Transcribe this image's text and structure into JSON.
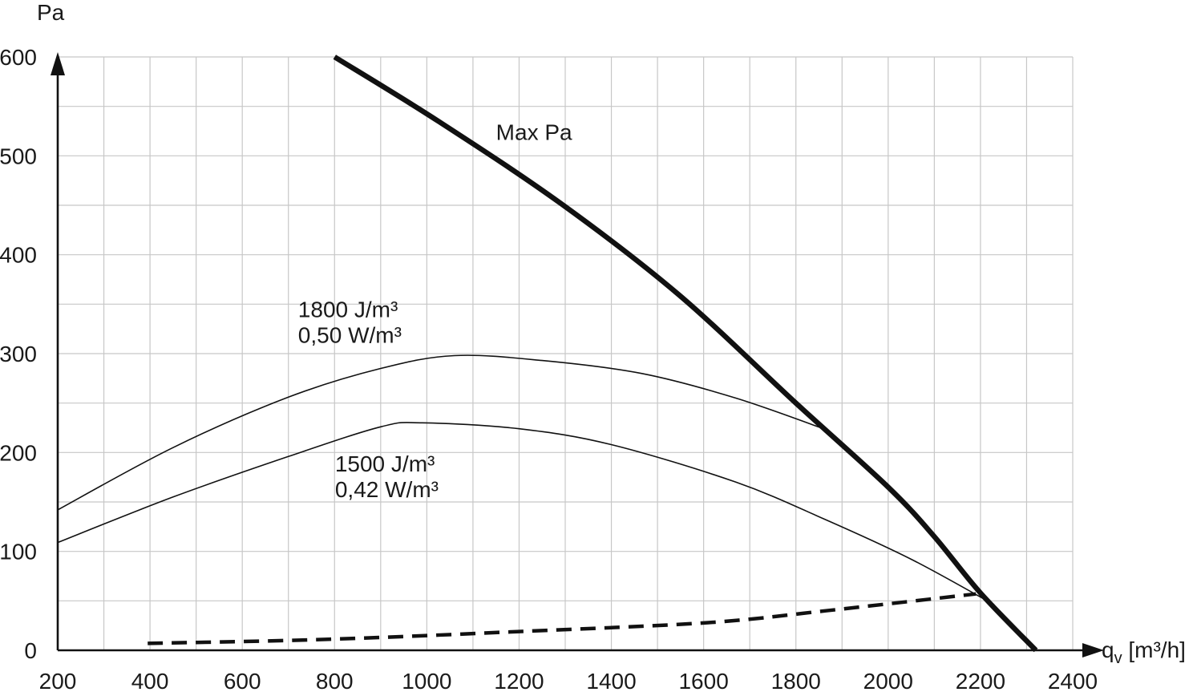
{
  "chart_data": {
    "type": "line",
    "title": "",
    "ylabel": "Pa",
    "xlabel_base": "q",
    "xlabel_sub": "v",
    "xlabel_unit": " [m³/h]",
    "xlim": [
      200,
      2400
    ],
    "ylim": [
      0,
      600
    ],
    "x_major_ticks": [
      200,
      400,
      600,
      800,
      1000,
      1200,
      1400,
      1600,
      1800,
      2000,
      2200,
      2400
    ],
    "y_major_ticks": [
      0,
      100,
      200,
      300,
      400,
      500,
      600
    ],
    "x_minor_step": 100,
    "y_minor_step": 50,
    "grid": true,
    "grid_color": "#c7c7c7",
    "axis_color": "#111111",
    "text_color": "#1a1a1a",
    "legend_position": "inline-annotations",
    "series": [
      {
        "id": "max-pa",
        "name": "Max Pa",
        "line": "solid",
        "width": 6.5,
        "color": "#111111",
        "points": [
          [
            800,
            600
          ],
          [
            1025,
            535
          ],
          [
            1290,
            452
          ],
          [
            1545,
            360
          ],
          [
            1800,
            250
          ],
          [
            2000,
            165
          ],
          [
            2100,
            115
          ],
          [
            2200,
            58
          ],
          [
            2320,
            0
          ]
        ]
      },
      {
        "id": "curve-1800j",
        "name": "1800 J/m³ 0,50 W/m³",
        "line": "solid",
        "width": 1.6,
        "color": "#111111",
        "points": [
          [
            200,
            142
          ],
          [
            450,
            205
          ],
          [
            700,
            256
          ],
          [
            900,
            285
          ],
          [
            1060,
            298
          ],
          [
            1250,
            293
          ],
          [
            1465,
            280
          ],
          [
            1670,
            255
          ],
          [
            1872,
            222
          ]
        ]
      },
      {
        "id": "curve-1500j",
        "name": "1500 J/m³ 0,42 W/m³",
        "line": "solid",
        "width": 1.6,
        "color": "#111111",
        "points": [
          [
            200,
            109
          ],
          [
            450,
            155
          ],
          [
            700,
            196
          ],
          [
            900,
            226
          ],
          [
            990,
            230
          ],
          [
            1200,
            224
          ],
          [
            1400,
            208
          ],
          [
            1670,
            170
          ],
          [
            1860,
            133
          ],
          [
            2050,
            92
          ],
          [
            2230,
            46
          ]
        ]
      },
      {
        "id": "dashed-minimum",
        "name": "",
        "line": "dashed",
        "width": 4.5,
        "dash": [
          19,
          11
        ],
        "color": "#111111",
        "points": [
          [
            395,
            7
          ],
          [
            780,
            11
          ],
          [
            1200,
            19
          ],
          [
            1610,
            28
          ],
          [
            1865,
            40
          ],
          [
            2190,
            57
          ]
        ]
      }
    ],
    "annotations": [
      {
        "id": "max-pa-label",
        "lines": [
          "Max Pa"
        ],
        "x": 1150,
        "y": 516,
        "anchor": "start"
      },
      {
        "id": "label-1800j",
        "lines": [
          "1800 J/m³",
          "0,50 W/m³"
        ],
        "x": 721,
        "y": 337,
        "anchor": "start"
      },
      {
        "id": "label-1500j",
        "lines": [
          "1500 J/m³",
          "0,42 W/m³"
        ],
        "x": 801,
        "y": 181,
        "anchor": "start"
      }
    ]
  }
}
